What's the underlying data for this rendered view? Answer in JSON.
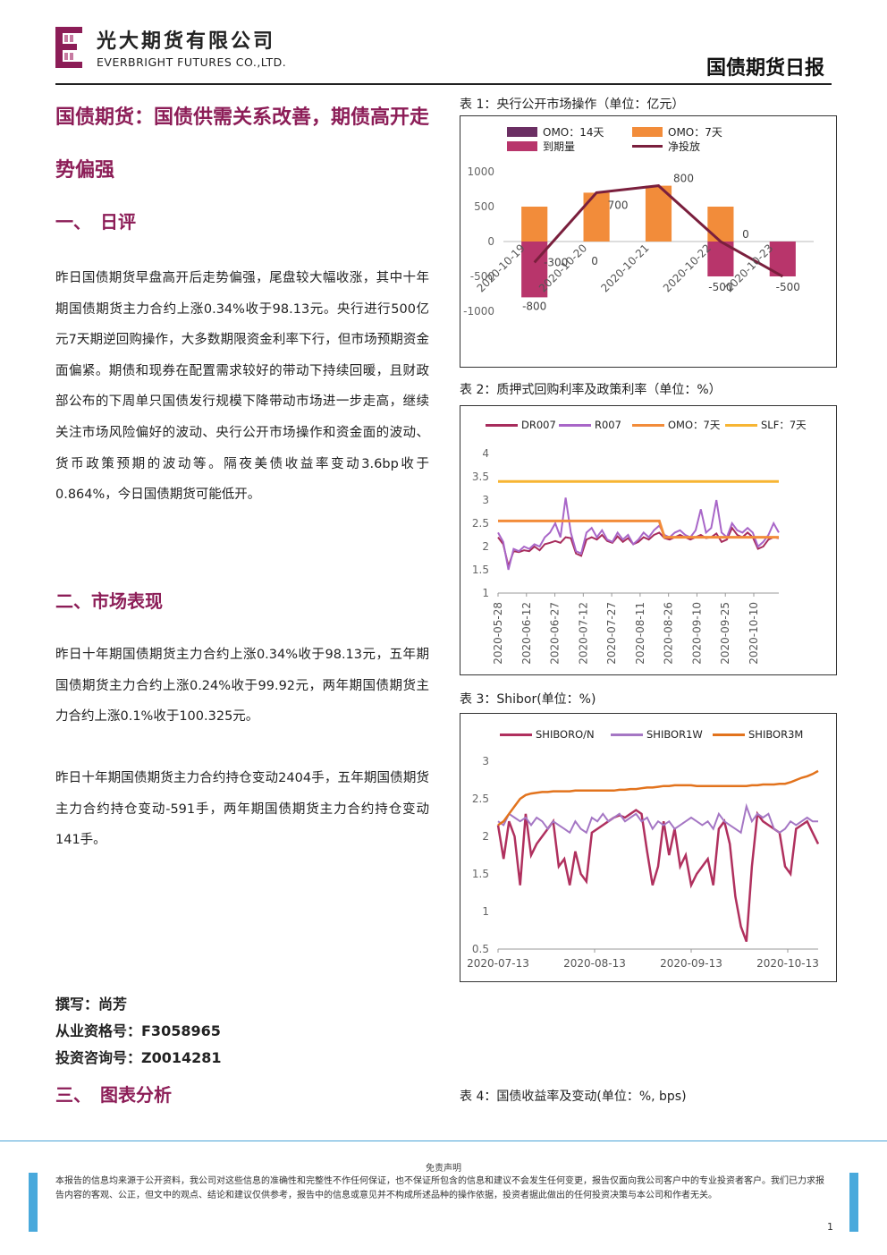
{
  "header": {
    "company_cn": "光大期货有限公司",
    "company_en": "EVERBRIGHT FUTURES CO.,LTD.",
    "report_title": "国债期货日报"
  },
  "main_title": "国债期货：国债供需关系改善，期债高开走势偏强",
  "sections": {
    "s1": "一、　日评",
    "s2": "二、市场表现",
    "s3": "三、　图表分析"
  },
  "paragraphs": {
    "daily_review": "昨日国债期货早盘高开后走势偏强，尾盘较大幅收涨，其中十年期国债期货主力合约上涨0.34%收于98.13元。央行进行500亿元7天期逆回购操作，大多数期限资金利率下行，但市场预期资金面偏紧。期债和现券在配置需求较好的带动下持续回暖，且财政部公布的下周单只国债发行规模下降带动市场进一步走高，继续关注市场风险偏好的波动、央行公开市场操作和资金面的波动、货币政策预期的波动等。隔夜美债收益率变动3.6bp收于0.864%，今日国债期货可能低开。",
    "market_1": "昨日十年期国债期货主力合约上涨0.34%收于98.13元，五年期国债期货主力合约上涨0.24%收于99.92元，两年期国债期货主力合约上涨0.1%收于100.325元。",
    "market_2": "昨日十年期国债期货主力合约持仓变动2404手，五年期国债期货主力合约持仓变动-591手，两年期国债期货主力合约持仓变动141手。"
  },
  "author": {
    "writer": "撰写：尚芳",
    "qualification": "从业资格号：F3058965",
    "consult": "投资咨询号：Z0014281"
  },
  "captions": {
    "c1": "表 1：央行公开市场操作（单位：亿元）",
    "c2": "表 2：质押式回购利率及政策利率（单位：%）",
    "c3": "表 3：Shibor(单位：%)",
    "c4": "表 4：国债收益率及变动(单位：%, bps)"
  },
  "footer": {
    "disclaimer_title": "免责声明",
    "disclaimer": "本报告的信息均来源于公开资料，我公司对这些信息的准确性和完整性不作任何保证，也不保证所包含的信息和建议不会发生任何变更，报告仅面向我公司客户中的专业投资者客户。我们已力求报告内容的客观、公正，但文中的观点、结论和建议仅供参考，报告中的信息或意见并不构成所述品种的操作依据，投资者据此做出的任何投资决策与本公司和作者无关。",
    "page": "1"
  },
  "colors": {
    "brand": "#8c1d57",
    "omo14": "#6b2f63",
    "omo7": "#f28c3a",
    "maturity": "#b8356b",
    "net": "#7a1f3d",
    "dr007": "#a72c5c",
    "r007": "#a866c8",
    "slf": "#f7b533",
    "shibor_on": "#b0305e",
    "shibor_1w": "#a577c4",
    "shibor_3m": "#e2731d"
  },
  "chart_data": [
    {
      "type": "bar",
      "categories": [
        "2020-10-19",
        "2020-10-20",
        "2020-10-21",
        "2020-10-22",
        "2020-10-23"
      ],
      "series": [
        {
          "name": "OMO：14天",
          "values": [
            0,
            0,
            0,
            0,
            0
          ]
        },
        {
          "name": "OMO：7天",
          "values": [
            500,
            700,
            800,
            500,
            0
          ]
        },
        {
          "name": "到期量",
          "values": [
            -800,
            0,
            0,
            -500,
            -500
          ]
        },
        {
          "name": "净投放",
          "values": [
            -300,
            700,
            800,
            0,
            -500
          ],
          "kind": "line"
        }
      ],
      "data_labels": [
        "-800",
        "-300",
        "0",
        "700",
        "800",
        "0",
        "-500",
        "-500"
      ],
      "ylim": [
        -1000,
        1000
      ],
      "yticks": [
        "1000",
        "500",
        "0",
        "-500",
        "-1000"
      ],
      "legend": "top"
    },
    {
      "type": "line",
      "x_ticks": [
        "2020-05-28",
        "2020-06-12",
        "2020-06-27",
        "2020-07-12",
        "2020-07-27",
        "2020-08-11",
        "2020-08-26",
        "2020-09-10",
        "2020-09-25",
        "2020-10-10"
      ],
      "yticks": [
        "4",
        "3.5",
        "3",
        "2.5",
        "2",
        "1.5",
        "1"
      ],
      "ylim": [
        1,
        4
      ],
      "series": [
        {
          "name": "DR007",
          "values": [
            2.2,
            2.05,
            1.58,
            1.9,
            1.88,
            1.92,
            1.9,
            2.0,
            1.92,
            2.05,
            2.08,
            2.12,
            2.08,
            2.2,
            2.18,
            1.85,
            1.8,
            2.15,
            2.2,
            2.15,
            2.25,
            2.12,
            2.08,
            2.22,
            2.1,
            2.18,
            2.05,
            2.1,
            2.2,
            2.15,
            2.25,
            2.3,
            2.18,
            2.15,
            2.2,
            2.25,
            2.2,
            2.15,
            2.2,
            2.25,
            2.18,
            2.2,
            2.28,
            2.1,
            2.15,
            2.4,
            2.25,
            2.2,
            2.3,
            2.2,
            1.95,
            2.0,
            2.15,
            2.2,
            2.18
          ]
        },
        {
          "name": "R007",
          "values": [
            2.3,
            2.1,
            1.5,
            1.95,
            1.9,
            2.0,
            1.95,
            2.05,
            2.0,
            2.2,
            2.3,
            2.5,
            2.2,
            3.05,
            2.3,
            1.9,
            1.85,
            2.3,
            2.4,
            2.2,
            2.35,
            2.15,
            2.1,
            2.3,
            2.15,
            2.25,
            2.05,
            2.15,
            2.3,
            2.2,
            2.35,
            2.45,
            2.25,
            2.2,
            2.3,
            2.35,
            2.25,
            2.2,
            2.35,
            2.8,
            2.3,
            2.4,
            3.0,
            2.3,
            2.2,
            2.5,
            2.35,
            2.3,
            2.4,
            2.3,
            2.0,
            2.1,
            2.25,
            2.5,
            2.3
          ]
        },
        {
          "name": "OMO：7天",
          "values": [
            2.55,
            2.55,
            2.55,
            2.55,
            2.55,
            2.55,
            2.55,
            2.55,
            2.55,
            2.55,
            2.55,
            2.55,
            2.55,
            2.55,
            2.55,
            2.55,
            2.55,
            2.55,
            2.55,
            2.55,
            2.55,
            2.55,
            2.55,
            2.55,
            2.55,
            2.55,
            2.55,
            2.55,
            2.55,
            2.55,
            2.55,
            2.55,
            2.2,
            2.2,
            2.2,
            2.2,
            2.2,
            2.2,
            2.2,
            2.2,
            2.2,
            2.2,
            2.2,
            2.2,
            2.2,
            2.2,
            2.2,
            2.2,
            2.2,
            2.2,
            2.2,
            2.2,
            2.2,
            2.2,
            2.2
          ]
        },
        {
          "name": "SLF：7天",
          "values": [
            3.4,
            3.4,
            3.4,
            3.4,
            3.4,
            3.4,
            3.4,
            3.4,
            3.4,
            3.4,
            3.4,
            3.4,
            3.4,
            3.4,
            3.4,
            3.4,
            3.4,
            3.4,
            3.4,
            3.4,
            3.4,
            3.4,
            3.4,
            3.4,
            3.4,
            3.4,
            3.4,
            3.4,
            3.4,
            3.4,
            3.4,
            3.4,
            3.4,
            3.4,
            3.4,
            3.4,
            3.4,
            3.4,
            3.4,
            3.4,
            3.4,
            3.4,
            3.4,
            3.4,
            3.4,
            3.4,
            3.4,
            3.4,
            3.4,
            3.4,
            3.4,
            3.4,
            3.4,
            3.4,
            3.4
          ]
        }
      ],
      "legend": "top"
    },
    {
      "type": "line",
      "x_ticks": [
        "2020-07-13",
        "2020-08-13",
        "2020-09-13",
        "2020-10-13"
      ],
      "yticks": [
        "3",
        "2.5",
        "2",
        "1.5",
        "1",
        "0.5"
      ],
      "ylim": [
        0.5,
        3
      ],
      "series": [
        {
          "name": "SHIBORO/N",
          "values": [
            2.15,
            1.7,
            2.2,
            2.0,
            1.35,
            2.3,
            1.75,
            1.9,
            2.0,
            2.1,
            2.2,
            1.6,
            1.7,
            1.35,
            1.8,
            1.5,
            1.4,
            2.05,
            2.1,
            2.15,
            2.2,
            2.25,
            2.28,
            2.25,
            2.3,
            2.35,
            2.3,
            1.8,
            1.35,
            1.6,
            2.2,
            1.75,
            2.1,
            1.6,
            1.75,
            1.35,
            1.5,
            1.6,
            1.7,
            1.35,
            2.1,
            2.2,
            1.9,
            1.2,
            0.8,
            0.6,
            1.6,
            2.3,
            2.2,
            2.15,
            2.1,
            2.05,
            1.6,
            1.5,
            2.1,
            2.15,
            2.2,
            2.05,
            1.9
          ]
        },
        {
          "name": "SHIBOR1W",
          "values": [
            2.2,
            2.15,
            2.3,
            2.25,
            2.2,
            2.25,
            2.15,
            2.25,
            2.2,
            2.1,
            2.2,
            2.15,
            2.1,
            2.05,
            2.2,
            2.1,
            2.05,
            2.25,
            2.2,
            2.3,
            2.2,
            2.25,
            2.3,
            2.2,
            2.25,
            2.3,
            2.2,
            2.25,
            2.1,
            2.2,
            2.15,
            2.2,
            2.1,
            2.15,
            2.2,
            2.25,
            2.2,
            2.15,
            2.2,
            2.1,
            2.3,
            2.2,
            2.15,
            2.1,
            2.05,
            2.4,
            2.2,
            2.3,
            2.25,
            2.3,
            2.1,
            2.05,
            2.1,
            2.2,
            2.15,
            2.2,
            2.25,
            2.2,
            2.2
          ]
        },
        {
          "name": "SHIBOR3M",
          "values": [
            2.15,
            2.2,
            2.3,
            2.4,
            2.5,
            2.55,
            2.57,
            2.58,
            2.59,
            2.59,
            2.6,
            2.6,
            2.6,
            2.6,
            2.61,
            2.61,
            2.61,
            2.61,
            2.61,
            2.61,
            2.61,
            2.61,
            2.62,
            2.62,
            2.63,
            2.63,
            2.64,
            2.65,
            2.65,
            2.66,
            2.67,
            2.67,
            2.68,
            2.68,
            2.68,
            2.68,
            2.67,
            2.67,
            2.67,
            2.67,
            2.67,
            2.67,
            2.67,
            2.67,
            2.67,
            2.67,
            2.68,
            2.68,
            2.69,
            2.69,
            2.69,
            2.7,
            2.7,
            2.72,
            2.75,
            2.78,
            2.8,
            2.83,
            2.87
          ]
        }
      ],
      "legend": "top"
    }
  ]
}
